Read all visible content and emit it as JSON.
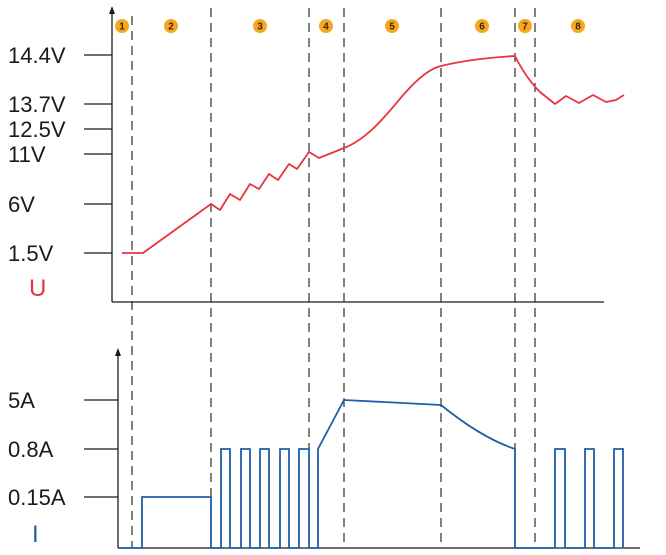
{
  "voltage_panel": {
    "symbol": "U",
    "symbol_color": "#e8343f",
    "curve_color": "#e8343f",
    "labels": {
      "v144": "14.4V",
      "v137": "13.7V",
      "v125": "12.5V",
      "v11": "11V",
      "v6": "6V",
      "v15": "1.5V"
    }
  },
  "current_panel": {
    "symbol": "I",
    "symbol_color": "#1f5fa8",
    "curve_color": "#1f5fa8",
    "labels": {
      "a5": "5A",
      "a08": "0.8A",
      "a015": "0.15A"
    }
  },
  "stages": {
    "color": "#f5a623",
    "items": [
      "1",
      "2",
      "3",
      "4",
      "5",
      "6",
      "7",
      "8"
    ]
  }
}
